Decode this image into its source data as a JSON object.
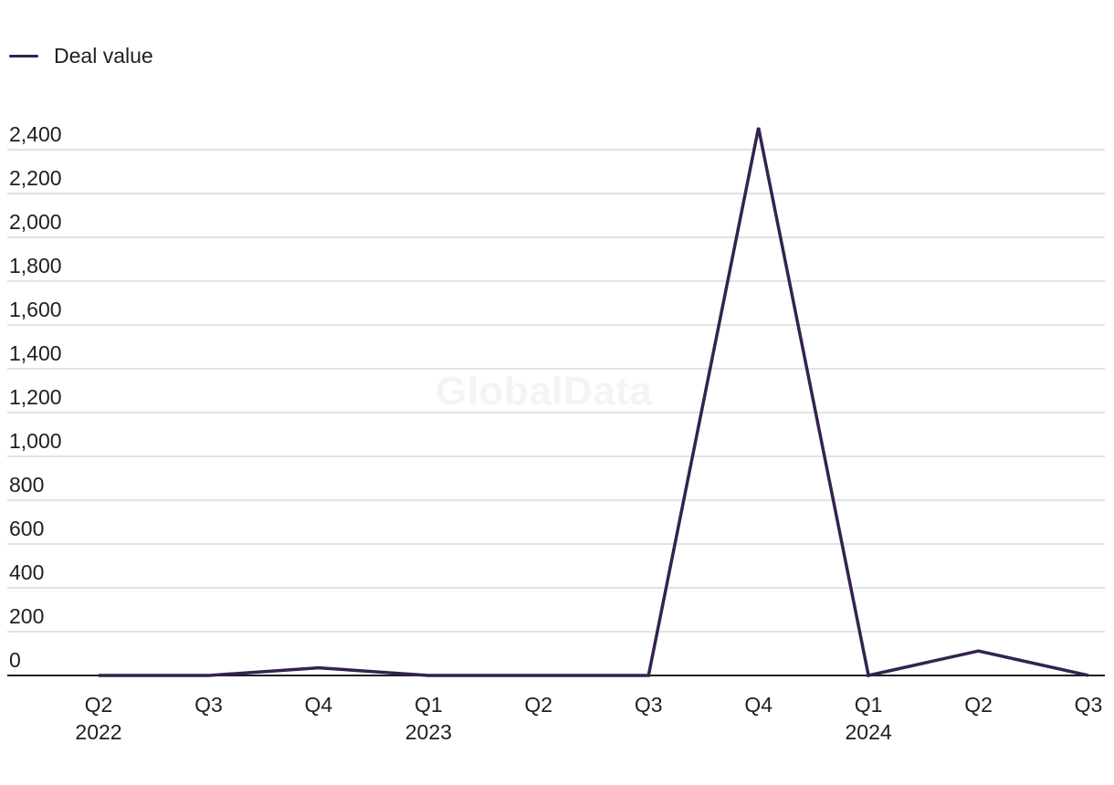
{
  "watermark": "GlobalData",
  "legend": {
    "label": "Deal value"
  },
  "colors": {
    "series": "#34224f",
    "grid": "#d9d9d9",
    "axis": "#1f1f1f"
  },
  "chart_data": {
    "type": "line",
    "categories": [
      "Q2 2022",
      "Q3 2022",
      "Q4 2022",
      "Q1 2023",
      "Q2 2023",
      "Q3 2023",
      "Q4 2023",
      "Q1 2024",
      "Q2 2024",
      "Q3 2024"
    ],
    "x_tick_labels": [
      {
        "quarter": "Q2",
        "year": "2022"
      },
      {
        "quarter": "Q3",
        "year": ""
      },
      {
        "quarter": "Q4",
        "year": ""
      },
      {
        "quarter": "Q1",
        "year": "2023"
      },
      {
        "quarter": "Q2",
        "year": ""
      },
      {
        "quarter": "Q3",
        "year": ""
      },
      {
        "quarter": "Q4",
        "year": ""
      },
      {
        "quarter": "Q1",
        "year": "2024"
      },
      {
        "quarter": "Q2",
        "year": ""
      },
      {
        "quarter": "Q3",
        "year": ""
      }
    ],
    "series": [
      {
        "name": "Deal value",
        "values": [
          0,
          0,
          35,
          0,
          0,
          0,
          2500,
          0,
          112,
          0
        ]
      }
    ],
    "y_ticks": [
      0,
      200,
      400,
      600,
      800,
      1000,
      1200,
      1400,
      1600,
      1800,
      2000,
      2200,
      2400
    ],
    "y_tick_labels": [
      "0",
      "200",
      "400",
      "600",
      "800",
      "1,000",
      "1,200",
      "1,400",
      "1,600",
      "1,800",
      "2,000",
      "2,200",
      "2,400"
    ],
    "ylim": [
      0,
      2400
    ],
    "title": "",
    "xlabel": "",
    "ylabel": "",
    "grid": true,
    "legend_position": "top-left"
  }
}
